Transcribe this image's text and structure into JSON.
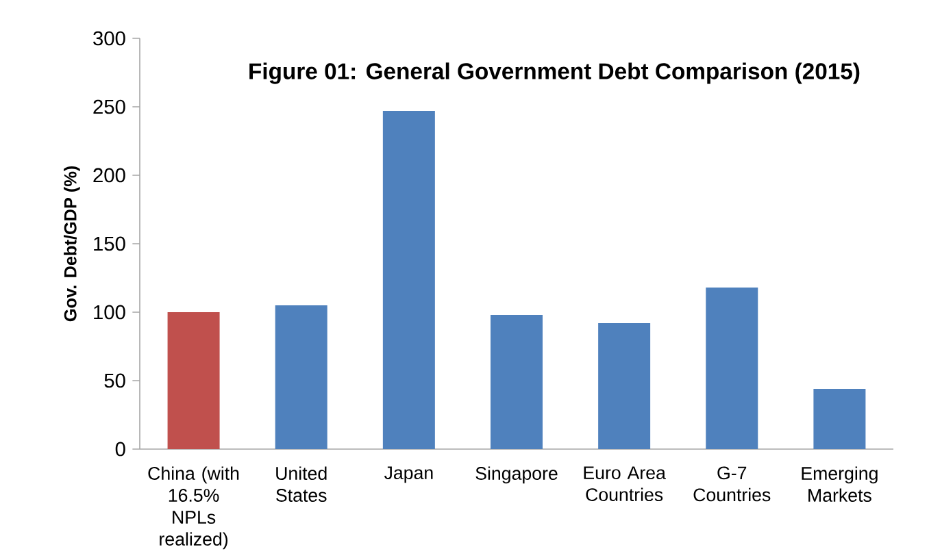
{
  "chart_data": {
    "type": "bar",
    "title": "Figure 01: General Government Debt Comparison (2015)",
    "ylabel": "Gov. Debt/GDP (%)",
    "categories": [
      "China (with 16.5% NPLs realized)",
      "United States",
      "Japan",
      "Singapore",
      "Euro Area Countries",
      "G-7 Countries",
      "Emerging Markets"
    ],
    "values": [
      100,
      105,
      247,
      98,
      92,
      118,
      44
    ],
    "colors": [
      "#c0504d",
      "#4f81bd",
      "#4f81bd",
      "#4f81bd",
      "#4f81bd",
      "#4f81bd",
      "#4f81bd"
    ],
    "ylim": [
      0,
      300
    ],
    "yticks": [
      0,
      50,
      100,
      150,
      200,
      250,
      300
    ]
  }
}
